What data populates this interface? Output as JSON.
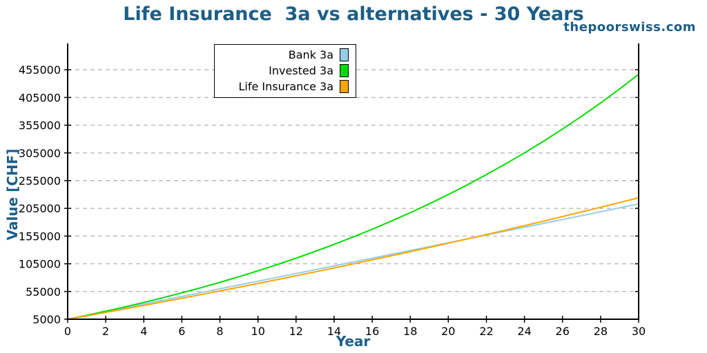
{
  "title": "Life Insurance  3a vs alternatives - 30 Years",
  "watermark": "thepoorswiss.com",
  "colors": {
    "title": "#1b5e87",
    "axis_label": "#1b5e87",
    "tick_text": "#000000",
    "axis": "#000000",
    "grid": "#b8b8b8",
    "background": "#ffffff",
    "bank": "#97cde6",
    "invested": "#00dd00",
    "insurance": "#ffa500"
  },
  "legend": {
    "items": [
      {
        "label": "Bank 3a"
      },
      {
        "label": "Invested 3a"
      },
      {
        "label": "Life Insurance 3a"
      }
    ]
  },
  "chart_data": {
    "type": "line",
    "title": "Life Insurance  3a vs alternatives - 30 Years",
    "xlabel": "Year",
    "ylabel": "Value [CHF]",
    "xlim": [
      0,
      30
    ],
    "ylim": [
      5000,
      502500
    ],
    "x_ticks": [
      0,
      2,
      4,
      6,
      8,
      10,
      12,
      14,
      16,
      18,
      20,
      22,
      24,
      26,
      28,
      30
    ],
    "y_ticks": [
      5000,
      55000,
      105000,
      155000,
      205000,
      255000,
      305000,
      355000,
      405000,
      455000
    ],
    "grid": "horizontal-dashed",
    "legend_position": "top-center-inside",
    "x": [
      0,
      1,
      2,
      3,
      4,
      5,
      6,
      7,
      8,
      9,
      10,
      11,
      12,
      13,
      14,
      15,
      16,
      17,
      18,
      19,
      20,
      21,
      22,
      23,
      24,
      25,
      26,
      27,
      28,
      29,
      30
    ],
    "series": [
      {
        "name": "Bank 3a",
        "color": "#97cde6",
        "values": [
          5000,
          11831,
          18669,
          25514,
          32365,
          39223,
          46089,
          52961,
          59840,
          66726,
          73618,
          80518,
          87424,
          94338,
          101258,
          108185,
          115120,
          122061,
          129009,
          135964,
          142926,
          149895,
          156871,
          163853,
          170843,
          177840,
          184844,
          191855,
          198873,
          205898,
          212929
        ]
      },
      {
        "name": "Invested 3a",
        "color": "#00dd00",
        "values": [
          5000,
          12059,
          19445,
          27175,
          35265,
          43731,
          52590,
          61862,
          71565,
          81718,
          92344,
          103464,
          115101,
          127280,
          140024,
          153361,
          167318,
          181925,
          197210,
          213206,
          229947,
          247465,
          265798,
          284984,
          305061,
          326073,
          348061,
          371072,
          395153,
          420353,
          446723
        ]
      },
      {
        "name": "Life Insurance 3a",
        "color": "#ffa500",
        "values": [
          5000,
          11110,
          17293,
          23551,
          29883,
          36292,
          42778,
          49341,
          55983,
          62705,
          69507,
          76391,
          83358,
          90408,
          97543,
          104764,
          112071,
          119466,
          126949,
          134523,
          142187,
          149943,
          157792,
          165736,
          173775,
          181910,
          190143,
          198475,
          206906,
          215439,
          224074
        ]
      }
    ]
  }
}
